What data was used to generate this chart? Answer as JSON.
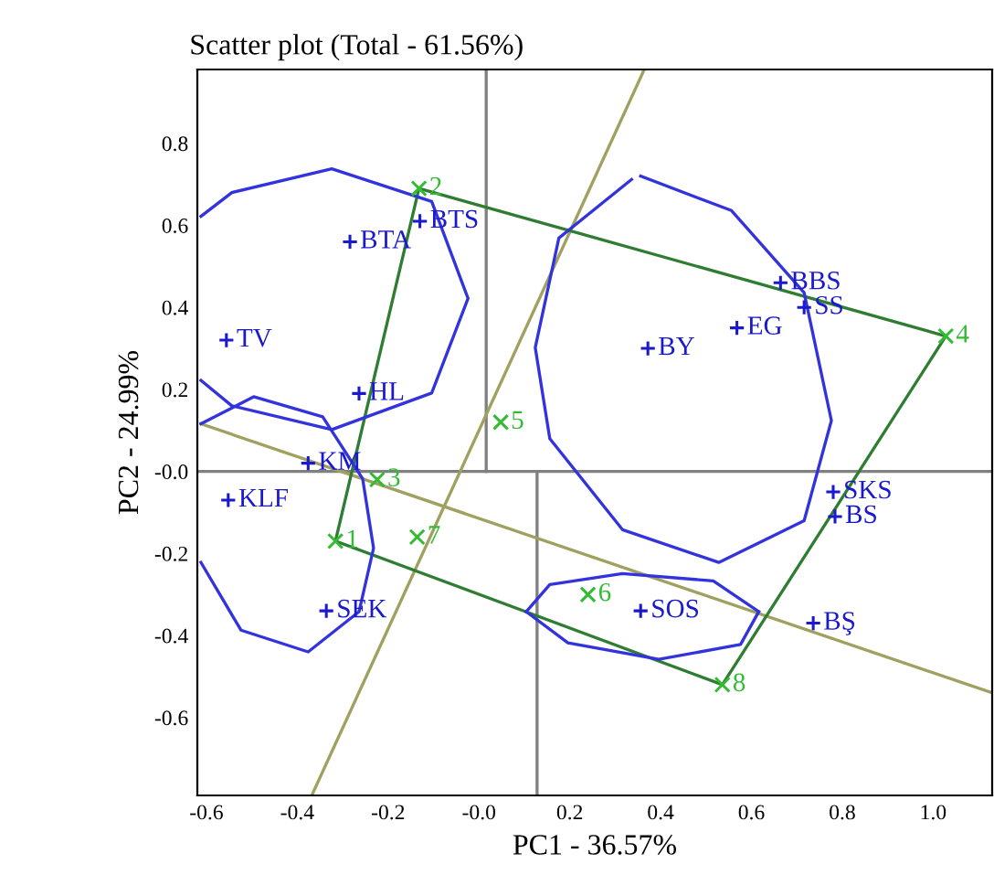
{
  "chart_data": {
    "type": "scatter",
    "title": "Scatter plot (Total - 61.56%)",
    "xlabel": "PC1 - 36.57%",
    "ylabel": "PC2 - 24.99%",
    "xlim": [
      -0.62,
      1.13
    ],
    "ylim": [
      -0.79,
      0.98
    ],
    "xticks": [
      -0.6,
      -0.4,
      -0.2,
      {
        "value": 0,
        "label": "-0.0"
      },
      0.2,
      0.4,
      0.6,
      0.8,
      {
        "value": 1.0,
        "label": "1.0"
      }
    ],
    "yticks": [
      -0.6,
      -0.4,
      -0.2,
      {
        "value": 0,
        "label": "-0.0"
      },
      0.2,
      0.4,
      0.6,
      0.8
    ],
    "grid": false,
    "legend": false,
    "series": [
      {
        "type": "line",
        "color": "#808080",
        "marker": "none",
        "x": [
          -0.62,
          1.13
        ],
        "values": [
          0,
          0
        ]
      },
      {
        "type": "line",
        "color": "#808080",
        "marker": "none",
        "x": [
          0.016,
          0.016
        ],
        "values": [
          0.98,
          0
        ]
      },
      {
        "type": "line",
        "color": "#808080",
        "marker": "none",
        "x": [
          0.128,
          0.128
        ],
        "values": [
          0,
          -0.79
        ]
      },
      {
        "type": "line",
        "color": "#a0a060",
        "marker": "none",
        "x": [
          -0.612,
          1.13
        ],
        "values": [
          0.116,
          -0.54
        ]
      },
      {
        "type": "line",
        "color": "#a0a060",
        "marker": "none",
        "x": [
          -0.368,
          0.364
        ],
        "values": [
          -0.79,
          0.98
        ]
      },
      {
        "type": "line",
        "color": "#2e7d32",
        "marker": "none",
        "x": [
          -0.316,
          -0.132,
          1.028
        ],
        "values": [
          -0.17,
          0.69,
          0.33
        ]
      },
      {
        "type": "line",
        "color": "#2e7d32",
        "marker": "none",
        "x": [
          -0.316,
          0.536,
          1.028
        ],
        "values": [
          -0.17,
          -0.52,
          0.33
        ]
      },
      {
        "type": "line",
        "color": "#3333dd",
        "marker": "none",
        "x": [
          -0.612,
          -0.544,
          -0.324,
          -0.104,
          -0.024,
          -0.104,
          -0.324,
          -0.544,
          -0.612
        ],
        "values": [
          0.622,
          0.68,
          0.738,
          0.658,
          0.422,
          0.191,
          0.102,
          0.16,
          0.222
        ]
      },
      {
        "type": "line",
        "color": "#3333dd",
        "marker": "none",
        "x": [
          0.356,
          0.556,
          0.716,
          0.776,
          0.716,
          0.528,
          0.316,
          0.156,
          0.124,
          0.176,
          0.336
        ],
        "values": [
          0.72,
          0.636,
          0.436,
          0.124,
          -0.12,
          -0.222,
          -0.142,
          0.08,
          0.302,
          0.569,
          0.712
        ]
      },
      {
        "type": "line",
        "color": "#3333dd",
        "marker": "none",
        "x": [
          -0.612,
          -0.496,
          -0.344,
          -0.256,
          -0.232,
          -0.264,
          -0.376,
          -0.524,
          -0.612
        ],
        "values": [
          0.116,
          0.182,
          0.133,
          -0.018,
          -0.187,
          -0.342,
          -0.44,
          -0.387,
          -0.222
        ]
      },
      {
        "type": "line",
        "color": "#3333dd",
        "marker": "none",
        "x": [
          0.104,
          0.156,
          0.316,
          0.516,
          0.616
        ],
        "values": [
          -0.342,
          -0.276,
          -0.249,
          -0.267,
          -0.342
        ]
      },
      {
        "type": "line",
        "color": "#3333dd",
        "marker": "none",
        "x": [
          0.104,
          0.196,
          0.396,
          0.576,
          0.616
        ],
        "values": [
          -0.342,
          -0.418,
          -0.458,
          -0.422,
          -0.342
        ]
      },
      {
        "color": "#1a1acc",
        "marker": "plus",
        "x": [
          -0.284,
          -0.13,
          -0.556,
          -0.264,
          -0.376,
          -0.552,
          -0.336,
          0.356,
          0.736,
          0.784,
          0.78,
          0.372,
          0.568,
          0.664,
          0.716
        ],
        "values": [
          0.56,
          0.61,
          0.32,
          0.19,
          0.02,
          -0.07,
          -0.34,
          -0.34,
          -0.37,
          -0.11,
          -0.05,
          0.3,
          0.35,
          0.46,
          0.4
        ]
      },
      {
        "color": "#33bb33",
        "marker": "cross",
        "x": [
          -0.316,
          -0.132,
          -0.224,
          1.028,
          0.048,
          0.24,
          -0.136,
          0.536
        ],
        "values": [
          -0.17,
          0.69,
          -0.02,
          0.33,
          0.12,
          -0.3,
          -0.16,
          -0.52
        ]
      }
    ],
    "annotations": [
      {
        "text": "BTA",
        "x": -0.284,
        "y": 0.56
      },
      {
        "text": "BTS",
        "x": -0.13,
        "y": 0.61
      },
      {
        "text": "TV",
        "x": -0.556,
        "y": 0.32
      },
      {
        "text": "HL",
        "x": -0.264,
        "y": 0.19
      },
      {
        "text": "KM",
        "x": -0.376,
        "y": 0.02
      },
      {
        "text": "KLF",
        "x": -0.552,
        "y": -0.07
      },
      {
        "text": "SEK",
        "x": -0.336,
        "y": -0.34
      },
      {
        "text": "SOS",
        "x": 0.356,
        "y": -0.34
      },
      {
        "text": "BŞ",
        "x": 0.736,
        "y": -0.37
      },
      {
        "text": "BS",
        "x": 0.784,
        "y": -0.11
      },
      {
        "text": "SKS",
        "x": 0.78,
        "y": -0.05
      },
      {
        "text": "BY",
        "x": 0.372,
        "y": 0.3
      },
      {
        "text": "EG",
        "x": 0.568,
        "y": 0.35
      },
      {
        "text": "BBS",
        "x": 0.664,
        "y": 0.46
      },
      {
        "text": "SS",
        "x": 0.716,
        "y": 0.4
      },
      {
        "text": "1",
        "x": -0.316,
        "y": -0.17
      },
      {
        "text": "2",
        "x": -0.132,
        "y": 0.69
      },
      {
        "text": "3",
        "x": -0.224,
        "y": -0.02
      },
      {
        "text": "4",
        "x": 1.028,
        "y": 0.33
      },
      {
        "text": "5",
        "x": 0.048,
        "y": 0.12
      },
      {
        "text": "6",
        "x": 0.24,
        "y": -0.3
      },
      {
        "text": "7",
        "x": -0.136,
        "y": -0.16
      },
      {
        "text": "8",
        "x": 0.536,
        "y": -0.52
      }
    ]
  }
}
